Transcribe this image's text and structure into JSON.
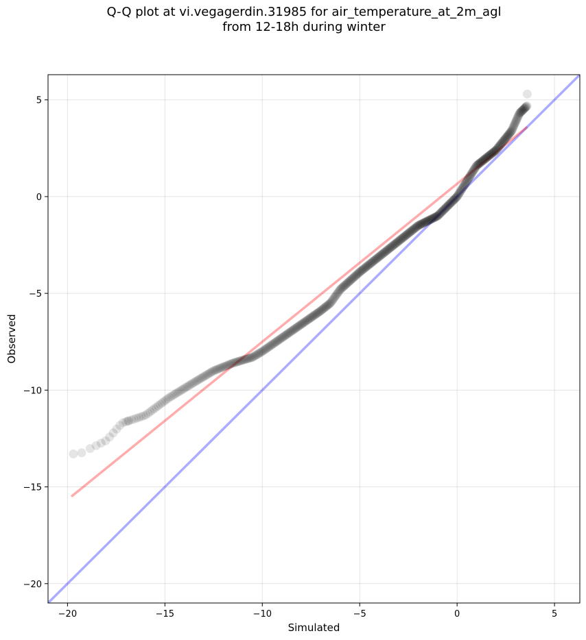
{
  "chart_data": {
    "type": "scatter",
    "title_line1": "Q-Q plot at vi.vegagerdin.31985 for air_temperature_at_2m_agl",
    "title_line2": "from 12-18h during winter",
    "xlabel": "Simulated",
    "ylabel": "Observed",
    "xlim": [
      -21,
      6.3
    ],
    "ylim": [
      -21,
      6.3
    ],
    "xticks": [
      -20,
      -15,
      -10,
      -5,
      0,
      5
    ],
    "yticks": [
      -20,
      -15,
      -10,
      -5,
      0,
      5
    ],
    "xtick_labels": [
      "−20",
      "−15",
      "−10",
      "−5",
      "0",
      "5"
    ],
    "ytick_labels": [
      "−20",
      "−15",
      "−10",
      "−5",
      "0",
      "5"
    ],
    "grid": true,
    "identity_line": {
      "color": "#0000ff",
      "x": [
        -21,
        6.3
      ],
      "y": [
        -21,
        6.3
      ]
    },
    "fit_line": {
      "color": "#ff0000",
      "x": [
        -19.8,
        3.6
      ],
      "y": [
        -15.5,
        3.6
      ]
    },
    "quantile_curve": {
      "color": "#000000",
      "x": [
        -19.8,
        -19.0,
        -18.0,
        -17.2,
        -16.0,
        -14.8,
        -13.5,
        -12.5,
        -11.5,
        -10.5,
        -10.0,
        -9.0,
        -8.0,
        -7.0,
        -6.5,
        -6.0,
        -5.0,
        -4.0,
        -3.0,
        -2.0,
        -1.0,
        0.0,
        0.5,
        1.0,
        2.0,
        2.8,
        3.2,
        3.6
      ],
      "y": [
        -13.5,
        -13.1,
        -12.6,
        -11.7,
        -11.3,
        -10.4,
        -9.6,
        -9.0,
        -8.6,
        -8.3,
        -8.0,
        -7.3,
        -6.6,
        -5.9,
        -5.5,
        -4.8,
        -3.9,
        -3.1,
        -2.3,
        -1.5,
        -1.0,
        0.0,
        0.8,
        1.6,
        2.4,
        3.4,
        4.3,
        4.7
      ],
      "outliers": [
        {
          "x": 3.6,
          "y": 5.3
        },
        {
          "x": -19.7,
          "y": -13.3
        },
        {
          "x": -16.9,
          "y": -11.6
        }
      ]
    }
  }
}
